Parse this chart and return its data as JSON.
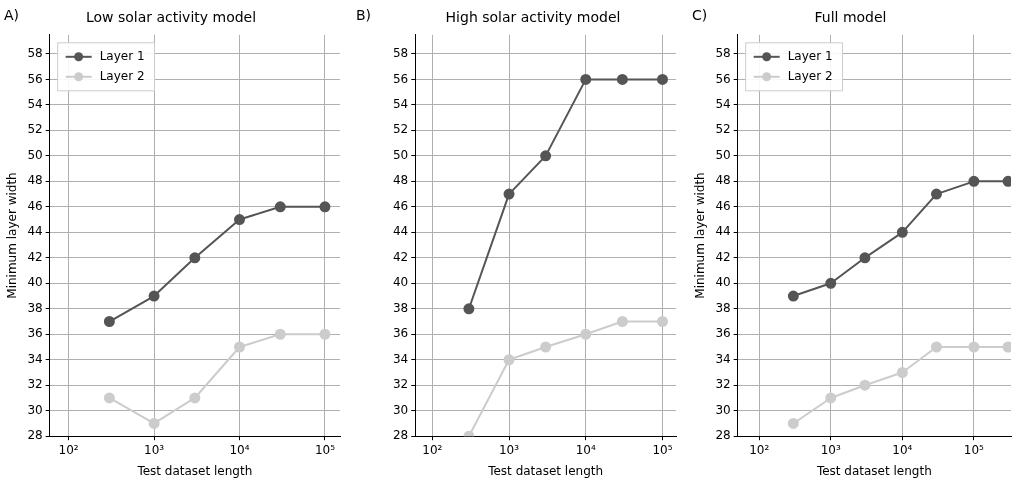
{
  "chart_data": [
    {
      "type": "line",
      "title": "Low solar activity model",
      "annotations": [
        "A)"
      ],
      "xlabel": "Test dataset length",
      "ylabel": "Minimum layer width",
      "log": "x",
      "grid": true,
      "legend": "top left",
      "marker": "circle",
      "xlim": [
        60,
        150000
      ],
      "xticks": [
        {
          "value": 100,
          "label": "10²"
        },
        {
          "value": 1000,
          "label": "10³"
        },
        {
          "value": 10000,
          "label": "10⁴"
        },
        {
          "value": 100000,
          "label": "10⁵"
        }
      ],
      "ylim": [
        28,
        59.5
      ],
      "yticks": [
        28,
        30,
        32,
        34,
        36,
        38,
        40,
        42,
        44,
        46,
        48,
        50,
        52,
        54,
        56,
        58
      ],
      "series": [
        {
          "name": "Layer 1",
          "color": "#555555",
          "x": [
            300,
            1000,
            3000,
            10000,
            30000,
            100000
          ],
          "values": [
            37,
            39,
            42,
            45,
            46,
            46
          ]
        },
        {
          "name": "Layer 2",
          "color": "#cccccc",
          "x": [
            300,
            1000,
            3000,
            10000,
            30000,
            100000
          ],
          "values": [
            31,
            29,
            31,
            35,
            36,
            36
          ]
        }
      ]
    },
    {
      "type": "line",
      "title": "High solar activity model",
      "annotations": [
        "B)"
      ],
      "xlabel": "Test dataset length",
      "log": "x",
      "grid": true,
      "marker": "circle",
      "xlim": [
        60,
        150000
      ],
      "xticks": [
        {
          "value": 100,
          "label": "10²"
        },
        {
          "value": 1000,
          "label": "10³"
        },
        {
          "value": 10000,
          "label": "10⁴"
        },
        {
          "value": 100000,
          "label": "10⁵"
        }
      ],
      "ylim": [
        28,
        59.5
      ],
      "yticks": [
        28,
        30,
        32,
        34,
        36,
        38,
        40,
        42,
        44,
        46,
        48,
        50,
        52,
        54,
        56,
        58
      ],
      "series": [
        {
          "color": "#555555",
          "x": [
            300,
            1000,
            3000,
            10000,
            30000,
            100000
          ],
          "values": [
            38,
            47,
            50,
            56,
            56,
            56
          ]
        },
        {
          "color": "#cccccc",
          "x": [
            300,
            1000,
            3000,
            10000,
            30000,
            100000
          ],
          "values": [
            28,
            34,
            35,
            36,
            37,
            37
          ]
        }
      ]
    },
    {
      "type": "line",
      "title": "Full model",
      "annotations": [
        "C)"
      ],
      "xlabel": "Test dataset length",
      "ylabel": "Minimum layer width",
      "log": "x",
      "grid": true,
      "legend": "top left",
      "marker": "circle",
      "xlim": [
        50,
        330000
      ],
      "xticks": [
        {
          "value": 100,
          "label": "10²"
        },
        {
          "value": 1000,
          "label": "10³"
        },
        {
          "value": 10000,
          "label": "10⁴"
        },
        {
          "value": 100000,
          "label": "10⁵"
        }
      ],
      "ylim": [
        28,
        59.5
      ],
      "yticks": [
        28,
        30,
        32,
        34,
        36,
        38,
        40,
        42,
        44,
        46,
        48,
        50,
        52,
        54,
        56,
        58
      ],
      "series": [
        {
          "name": "Layer 1",
          "color": "#555555",
          "x": [
            300,
            1000,
            3000,
            10000,
            30000,
            100000,
            300000
          ],
          "values": [
            39,
            40,
            42,
            44,
            47,
            48,
            48
          ]
        },
        {
          "name": "Layer 2",
          "color": "#cccccc",
          "x": [
            300,
            1000,
            3000,
            10000,
            30000,
            100000,
            300000
          ],
          "values": [
            29,
            31,
            32,
            33,
            35,
            35,
            35
          ]
        }
      ]
    }
  ]
}
